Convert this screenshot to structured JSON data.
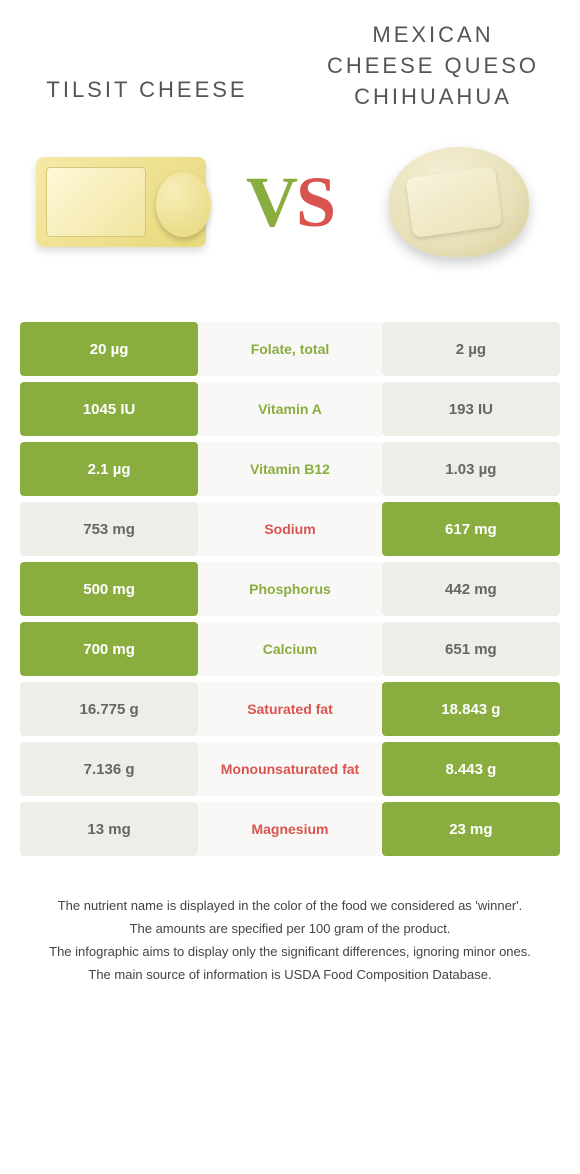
{
  "header": {
    "left_title": "TILSIT CHEESE",
    "right_title": "MEXICAN CHEESE QUESO CHIHUAHUA",
    "vs_v": "V",
    "vs_s": "S"
  },
  "colors": {
    "green": "#8aad3f",
    "red": "#d9534f",
    "pale": "#edeee8",
    "mid_bg": "#f8f9f6"
  },
  "rows": [
    {
      "left": "20 µg",
      "label": "Folate, total",
      "right": "2 µg",
      "winner": "left"
    },
    {
      "left": "1045 IU",
      "label": "Vitamin A",
      "right": "193 IU",
      "winner": "left"
    },
    {
      "left": "2.1 µg",
      "label": "Vitamin B12",
      "right": "1.03 µg",
      "winner": "left"
    },
    {
      "left": "753 mg",
      "label": "Sodium",
      "right": "617 mg",
      "winner": "right"
    },
    {
      "left": "500 mg",
      "label": "Phosphorus",
      "right": "442 mg",
      "winner": "left"
    },
    {
      "left": "700 mg",
      "label": "Calcium",
      "right": "651 mg",
      "winner": "left"
    },
    {
      "left": "16.775 g",
      "label": "Saturated fat",
      "right": "18.843 g",
      "winner": "right"
    },
    {
      "left": "7.136 g",
      "label": "Monounsaturated fat",
      "right": "8.443 g",
      "winner": "right"
    },
    {
      "left": "13 mg",
      "label": "Magnesium",
      "right": "23 mg",
      "winner": "right"
    }
  ],
  "footer": {
    "l1": "The nutrient name is displayed in the color of the food we considered as 'winner'.",
    "l2": "The amounts are specified per 100 gram of the product.",
    "l3": "The infographic aims to display only the significant differences, ignoring minor ones.",
    "l4": "The main source of information is USDA Food Composition Database."
  }
}
